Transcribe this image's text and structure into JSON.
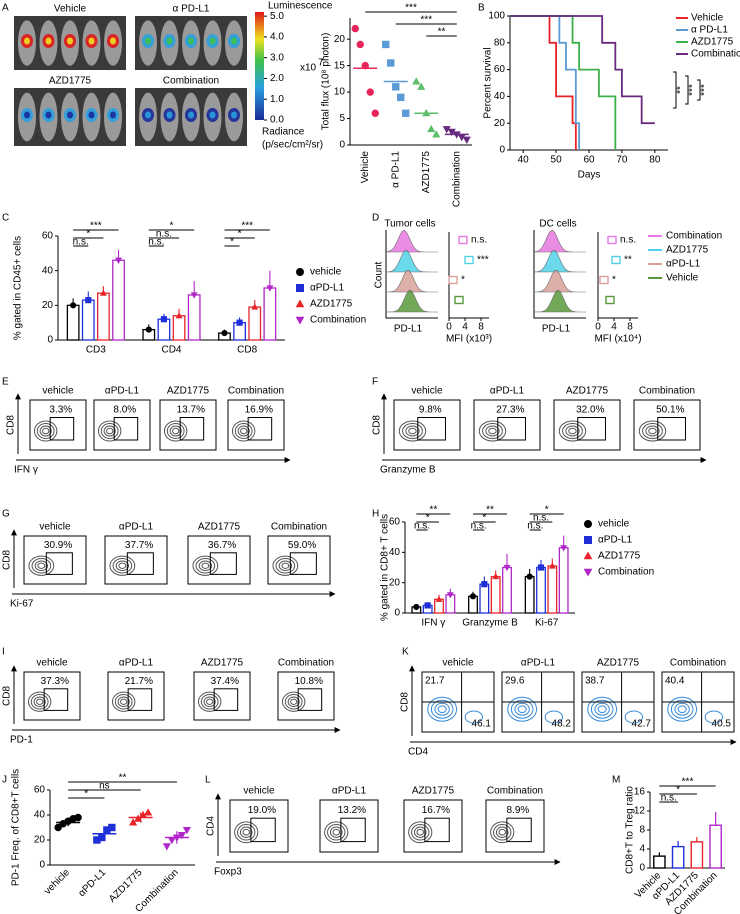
{
  "panel_letters": [
    "A",
    "B",
    "C",
    "D",
    "E",
    "F",
    "G",
    "H",
    "I",
    "J",
    "K",
    "L",
    "M"
  ],
  "imaging": {
    "labels": [
      "Vehicle",
      "α PD-L1",
      "AZD1775",
      "Combination"
    ],
    "colorbar": {
      "title": "Luminescence",
      "lim": [
        0,
        5.2
      ],
      "ticks": [
        {
          "value": 5,
          "label": "5.0"
        },
        {
          "value": 4,
          "label": "4.0"
        },
        {
          "value": 3,
          "label": "3.0"
        },
        {
          "value": 2,
          "label": "2.0"
        },
        {
          "value": 1,
          "label": "1.0"
        },
        {
          "value": 0,
          "label": "0.0"
        }
      ],
      "exponent": "x10",
      "exponent_power": "7",
      "unit_title": "Radiance",
      "unit": "(p/sec/cm²/sr)"
    }
  },
  "chart_data": [
    {
      "type": "dot",
      "ylabel": "Total flux (10⁸ photon)",
      "categories": [
        "Vehicle",
        "α PD-L1",
        "AZD1775",
        "Combination"
      ],
      "colors": [
        "#e8245a",
        "#5b9bd5",
        "#5cbf6a",
        "#6a2a80"
      ],
      "markers": [
        "circle",
        "square",
        "triangle",
        "triangle-down"
      ],
      "points": [
        [
          22,
          19,
          15,
          10,
          6
        ],
        [
          19,
          15.5,
          11,
          9,
          6
        ],
        [
          12,
          11,
          6,
          3,
          2
        ],
        [
          3,
          2.5,
          2,
          1.5,
          1
        ]
      ],
      "means": [
        14.5,
        12,
        6,
        2
      ],
      "ylim": [
        0,
        24
      ],
      "yticks": [
        0,
        5,
        10,
        15,
        20
      ],
      "annotations": [
        {
          "text": "***",
          "between": [
            "Vehicle",
            "Combination"
          ]
        },
        {
          "text": "***",
          "between": [
            "α PD-L1",
            "Combination"
          ]
        },
        {
          "text": "**",
          "between": [
            "AZD1775",
            "Combination"
          ]
        }
      ]
    },
    {
      "type": "step",
      "xlabel": "Days",
      "ylabel": "Percent survival",
      "xlim": [
        36,
        84
      ],
      "xticks": [
        40,
        50,
        60,
        70,
        80
      ],
      "ylim": [
        0,
        100
      ],
      "yticks": [
        0,
        20,
        40,
        60,
        80,
        100
      ],
      "series": [
        {
          "name": "Vehicle",
          "color": "#e8242a",
          "x": [
            36,
            48,
            50,
            55,
            56
          ],
          "values": [
            100,
            80,
            40,
            20,
            0
          ]
        },
        {
          "name": "α  PD-L1",
          "color": "#5b9bd5",
          "x": [
            36,
            51,
            53,
            56,
            57
          ],
          "values": [
            100,
            80,
            60,
            20,
            0
          ]
        },
        {
          "name": "AZD1775",
          "color": "#3cb04a",
          "x": [
            36,
            55,
            57,
            63,
            68
          ],
          "values": [
            100,
            80,
            60,
            40,
            0
          ]
        },
        {
          "name": "Combination",
          "color": "#6a2a80",
          "x": [
            36,
            64,
            68,
            70,
            76,
            80
          ],
          "values": [
            100,
            80,
            60,
            40,
            20,
            20
          ]
        }
      ],
      "annotations": [
        "**",
        "***",
        "***"
      ]
    },
    {
      "type": "gbar",
      "ylabel": "% gated in CD45+ cells",
      "categories": [
        "CD3",
        "CD4",
        "CD8"
      ],
      "ylim": [
        0,
        60
      ],
      "yticks": [
        0,
        20,
        40,
        60
      ],
      "series": [
        {
          "name": "vehicle",
          "color": "#000000",
          "marker": "circle",
          "values": [
            20,
            6,
            4
          ],
          "errors": [
            4,
            3,
            2
          ]
        },
        {
          "name": "αPD-L1",
          "color": "#1f2fd8",
          "marker": "square",
          "values": [
            23,
            12,
            10
          ],
          "errors": [
            5,
            3,
            3
          ]
        },
        {
          "name": "AZD1775",
          "color": "#e8242a",
          "marker": "triangle",
          "values": [
            27,
            14,
            19
          ],
          "errors": [
            4,
            4,
            4
          ]
        },
        {
          "name": "Combination",
          "color": "#b026c8",
          "marker": "triangle-down",
          "values": [
            46,
            26,
            30
          ],
          "errors": [
            6,
            8,
            10
          ]
        }
      ],
      "annotations": [
        {
          "text": "***",
          "category": "CD3",
          "between": [
            "vehicle",
            "Combination"
          ]
        },
        {
          "text": "*",
          "category": "CD3",
          "between": [
            "vehicle",
            "AZD1775"
          ]
        },
        {
          "text": "n.s.",
          "category": "CD3",
          "between": [
            "vehicle",
            "αPD-L1"
          ]
        },
        {
          "text": "*",
          "category": "CD4",
          "between": [
            "vehicle",
            "Combination"
          ]
        },
        {
          "text": "n.s.",
          "category": "CD4",
          "between": [
            "vehicle",
            "AZD1775"
          ]
        },
        {
          "text": "n.s.",
          "category": "CD4",
          "between": [
            "vehicle",
            "αPD-L1"
          ]
        },
        {
          "text": "***",
          "category": "CD8",
          "between": [
            "vehicle",
            "Combination"
          ]
        },
        {
          "text": "*",
          "category": "CD8",
          "between": [
            "vehicle",
            "AZD1775"
          ]
        },
        {
          "text": "*",
          "category": "CD8",
          "between": [
            "vehicle",
            "αPD-L1"
          ]
        }
      ]
    },
    {
      "type": "gbar",
      "ylabel": "% gated in CD8+ T cells",
      "categories": [
        "IFN γ",
        "Granzyme B",
        "Ki-67"
      ],
      "ylim": [
        0,
        60
      ],
      "yticks": [
        0,
        20,
        40,
        60
      ],
      "series": [
        {
          "name": "vehicle",
          "color": "#000000",
          "marker": "circle",
          "values": [
            4,
            11,
            24
          ],
          "errors": [
            1,
            3,
            5
          ]
        },
        {
          "name": "αPD-L1",
          "color": "#1f2fd8",
          "marker": "square",
          "values": [
            5,
            19,
            30
          ],
          "errors": [
            2,
            5,
            5
          ]
        },
        {
          "name": "AZD1775",
          "color": "#e8242a",
          "marker": "triangle",
          "values": [
            9,
            24,
            31
          ],
          "errors": [
            3,
            4,
            5
          ]
        },
        {
          "name": "Combination",
          "color": "#b026c8",
          "marker": "triangle-down",
          "values": [
            12,
            30,
            43
          ],
          "errors": [
            4,
            9,
            8
          ]
        }
      ],
      "annotations": [
        {
          "text": "**",
          "category": "IFN γ",
          "between": [
            "vehicle",
            "Combination"
          ]
        },
        {
          "text": "*",
          "category": "IFN γ",
          "between": [
            "vehicle",
            "AZD1775"
          ]
        },
        {
          "text": "n.s.",
          "category": "IFN γ",
          "between": [
            "vehicle",
            "αPD-L1"
          ]
        },
        {
          "text": "**",
          "category": "Granzyme B",
          "between": [
            "vehicle",
            "Combination"
          ]
        },
        {
          "text": "*",
          "category": "Granzyme B",
          "between": [
            "vehicle",
            "AZD1775"
          ]
        },
        {
          "text": "n.s.",
          "category": "Granzyme B",
          "between": [
            "vehicle",
            "αPD-L1"
          ]
        },
        {
          "text": "*",
          "category": "Ki-67",
          "between": [
            "vehicle",
            "Combination"
          ]
        },
        {
          "text": "n.s.",
          "category": "Ki-67",
          "between": [
            "vehicle",
            "AZD1775"
          ]
        },
        {
          "text": "n.s.",
          "category": "Ki-67",
          "between": [
            "vehicle",
            "αPD-L1"
          ]
        }
      ]
    },
    {
      "type": "dot",
      "ylabel": "PD-1 Freq. of CD8+T cells",
      "categories": [
        "vehicle",
        "αPD-L1",
        "AZD1775",
        "Combination"
      ],
      "colors": [
        "#000000",
        "#1f2fd8",
        "#e8242a",
        "#b026c8"
      ],
      "markers": [
        "circle",
        "square",
        "triangle",
        "triangle-down"
      ],
      "points": [
        [
          30,
          33,
          35,
          37,
          38
        ],
        [
          20,
          22,
          28,
          30
        ],
        [
          34,
          37,
          40,
          42
        ],
        [
          15,
          20,
          22,
          24,
          28
        ]
      ],
      "means": [
        34,
        25,
        38,
        22
      ],
      "errors": [
        3,
        5,
        4,
        5
      ],
      "ylim": [
        0,
        60
      ],
      "yticks": [
        0,
        20,
        40,
        60
      ],
      "annotations": [
        {
          "text": "*",
          "between": [
            "vehicle",
            "αPD-L1"
          ]
        },
        {
          "text": "ns",
          "between": [
            "vehicle",
            "AZD1775"
          ]
        },
        {
          "text": "**",
          "between": [
            "vehicle",
            "Combination"
          ]
        }
      ]
    },
    {
      "type": "bar",
      "ylabel": "CD8+T to Treg ratio",
      "categories": [
        "Vehicle",
        "αPD-L1",
        "AZD1775",
        "Combination"
      ],
      "colors": [
        "#000000",
        "#1f2fd8",
        "#e8242a",
        "#b026c8"
      ],
      "values": [
        2.5,
        4.5,
        5.5,
        9
      ],
      "errors": [
        0.8,
        1.2,
        1,
        2.8
      ],
      "ylim": [
        0,
        16
      ],
      "yticks": [
        0,
        4,
        8,
        12,
        16
      ],
      "annotations": [
        {
          "text": "***",
          "between": [
            "Vehicle",
            "Combination"
          ]
        },
        {
          "text": "*",
          "between": [
            "Vehicle",
            "AZD1775"
          ]
        },
        {
          "text": "n.s.",
          "between": [
            "Vehicle",
            "αPD-L1"
          ]
        }
      ]
    }
  ],
  "panel_d": {
    "tumor_title": "Tumor cells",
    "dc_title": "DC cells",
    "ylabel": "Count",
    "xlabel": "PD-L1",
    "tumor_mfi_label": "MFI (x10³)",
    "dc_mfi_label": "MFI (x10⁴)",
    "mfi_lim": [
      0,
      10
    ],
    "mfi_ticks": [
      0,
      4,
      8
    ],
    "groups": [
      {
        "name": "Combination",
        "color": "#e879e0",
        "tumor_mfi": 3.5,
        "dc_mfi": 3.5,
        "tumor_sig": "n.s.",
        "dc_sig": "n.s."
      },
      {
        "name": "AZD1775",
        "color": "#4fd3e8",
        "tumor_mfi": 5,
        "dc_mfi": 4.5,
        "tumor_sig": "***",
        "dc_sig": "**"
      },
      {
        "name": "αPD-L1",
        "color": "#d9a09a",
        "tumor_mfi": 1,
        "dc_mfi": 1.5,
        "tumor_sig": "*",
        "dc_sig": "*"
      },
      {
        "name": "Vehicle",
        "color": "#5a9a3a",
        "tumor_mfi": 2.5,
        "dc_mfi": 3,
        "tumor_sig": null,
        "dc_sig": null
      }
    ]
  },
  "flow": {
    "E": {
      "titles": [
        "vehicle",
        "αPD-L1",
        "AZD1775",
        "Combination"
      ],
      "gates": [
        "3.3%",
        "8.0%",
        "13.7%",
        "16.9%"
      ],
      "ylabel": "CD8",
      "xlabel": "IFN γ"
    },
    "F": {
      "titles": [
        "vehicle",
        "αPD-L1",
        "AZD1775",
        "Combination"
      ],
      "gates": [
        "9.8%",
        "27.3%",
        "32.0%",
        "50.1%"
      ],
      "ylabel": "CD8",
      "xlabel": "Granzyme B"
    },
    "G": {
      "titles": [
        "vehicle",
        "αPD-L1",
        "AZD1775",
        "Combination"
      ],
      "gates": [
        "30.9%",
        "37.7%",
        "36.7%",
        "59.0%"
      ],
      "ylabel": "CD8",
      "xlabel": "Ki-67"
    },
    "I": {
      "titles": [
        "vehicle",
        "αPD-L1",
        "AZD1775",
        "Combination"
      ],
      "gates": [
        "37.3%",
        "21.7%",
        "37.4%",
        "10.8%"
      ],
      "ylabel": "CD8",
      "xlabel": "PD-1"
    },
    "K": {
      "titles": [
        "vehicle",
        "αPD-L1",
        "AZD1775",
        "Combination"
      ],
      "quadrants": [
        [
          "21.7",
          "46.1"
        ],
        [
          "29.6",
          "48.2"
        ],
        [
          "38.7",
          "42.7"
        ],
        [
          "40.4",
          "40.5"
        ]
      ],
      "ylabel": "CD8",
      "xlabel": "CD4"
    },
    "L": {
      "titles": [
        "vehicle",
        "αPD-L1",
        "AZD1775",
        "Combination"
      ],
      "gates": [
        "19.0%",
        "13.2%",
        "16.7%",
        "8.9%"
      ],
      "ylabel": "CD4",
      "xlabel": "Foxp3"
    }
  }
}
